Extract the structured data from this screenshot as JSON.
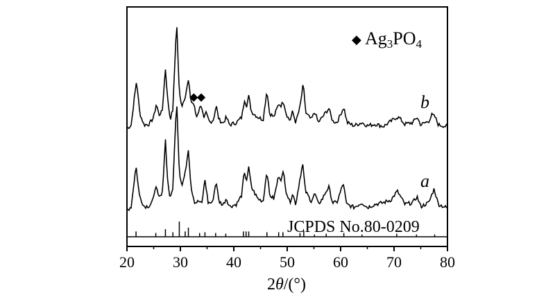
{
  "chart_data": {
    "type": "line",
    "title": "",
    "xlabel": "2θ/(°)",
    "xlabel_parts": {
      "prefix": "2",
      "theta": "θ",
      "suffix": "/(°)"
    },
    "ylabel": "",
    "xlim": [
      20,
      80
    ],
    "x_ticks": [
      20,
      30,
      40,
      50,
      60,
      70,
      80
    ],
    "y_axis": "no ticks or tick labels; traces offset vertically (arbitrary intensity)",
    "legend": {
      "marker": "◆",
      "label_parts": [
        "Ag",
        "3",
        "PO",
        "4"
      ],
      "label": "Ag3PO4",
      "placement": "top-right"
    },
    "reference_label": "JCPDS No.80-0209",
    "reference_lines": [
      {
        "x": 21.7,
        "h": 0.35
      },
      {
        "x": 25.4,
        "h": 0.25
      },
      {
        "x": 27.2,
        "h": 0.5
      },
      {
        "x": 28.6,
        "h": 0.3
      },
      {
        "x": 29.8,
        "h": 1.0
      },
      {
        "x": 30.9,
        "h": 0.35
      },
      {
        "x": 31.5,
        "h": 0.6
      },
      {
        "x": 33.6,
        "h": 0.25
      },
      {
        "x": 34.6,
        "h": 0.3
      },
      {
        "x": 36.6,
        "h": 0.25
      },
      {
        "x": 38.5,
        "h": 0.2
      },
      {
        "x": 41.8,
        "h": 0.35
      },
      {
        "x": 42.3,
        "h": 0.35
      },
      {
        "x": 42.8,
        "h": 0.35
      },
      {
        "x": 46.2,
        "h": 0.3
      },
      {
        "x": 48.4,
        "h": 0.3
      },
      {
        "x": 49.2,
        "h": 0.3
      },
      {
        "x": 52.4,
        "h": 0.25
      },
      {
        "x": 53.1,
        "h": 0.4
      },
      {
        "x": 55.1,
        "h": 0.15
      },
      {
        "x": 57.3,
        "h": 0.2
      },
      {
        "x": 60.6,
        "h": 0.25
      },
      {
        "x": 64.0,
        "h": 0.15
      },
      {
        "x": 70.5,
        "h": 0.2
      },
      {
        "x": 74.2,
        "h": 0.15
      },
      {
        "x": 77.6,
        "h": 0.15
      }
    ],
    "series": [
      {
        "name": "b",
        "diamond_markers_x": [
          32.5,
          33.9
        ],
        "points": [
          [
            20,
            0
          ],
          [
            20.8,
            0.05
          ],
          [
            21.3,
            0.35
          ],
          [
            21.8,
            0.62
          ],
          [
            22.4,
            0.2
          ],
          [
            23.2,
            0.05
          ],
          [
            24.2,
            0.06
          ],
          [
            25.0,
            0.15
          ],
          [
            25.5,
            0.32
          ],
          [
            26.0,
            0.18
          ],
          [
            26.6,
            0.22
          ],
          [
            27.2,
            0.78
          ],
          [
            27.6,
            0.4
          ],
          [
            28.1,
            0.12
          ],
          [
            28.6,
            0.25
          ],
          [
            29.3,
            1.4
          ],
          [
            29.8,
            0.45
          ],
          [
            30.3,
            0.3
          ],
          [
            30.9,
            0.42
          ],
          [
            31.5,
            0.62
          ],
          [
            32.0,
            0.35
          ],
          [
            32.5,
            0.32
          ],
          [
            33.0,
            0.15
          ],
          [
            33.9,
            0.32
          ],
          [
            34.4,
            0.12
          ],
          [
            34.8,
            0.2
          ],
          [
            35.5,
            0.08
          ],
          [
            36.2,
            0.12
          ],
          [
            36.7,
            0.3
          ],
          [
            37.2,
            0.12
          ],
          [
            38.0,
            0.07
          ],
          [
            38.6,
            0.15
          ],
          [
            39.2,
            0.05
          ],
          [
            40.5,
            0.08
          ],
          [
            41.5,
            0.15
          ],
          [
            42.0,
            0.38
          ],
          [
            42.4,
            0.3
          ],
          [
            42.8,
            0.42
          ],
          [
            43.3,
            0.22
          ],
          [
            44.5,
            0.15
          ],
          [
            45.5,
            0.12
          ],
          [
            46.2,
            0.5
          ],
          [
            46.7,
            0.2
          ],
          [
            47.5,
            0.15
          ],
          [
            48.4,
            0.32
          ],
          [
            48.9,
            0.3
          ],
          [
            49.3,
            0.36
          ],
          [
            49.8,
            0.2
          ],
          [
            50.5,
            0.1
          ],
          [
            51.0,
            0.22
          ],
          [
            51.6,
            0.08
          ],
          [
            52.4,
            0.28
          ],
          [
            53.0,
            0.58
          ],
          [
            53.5,
            0.2
          ],
          [
            54.5,
            0.12
          ],
          [
            55.2,
            0.22
          ],
          [
            55.8,
            0.08
          ],
          [
            56.6,
            0.15
          ],
          [
            57.3,
            0.22
          ],
          [
            57.8,
            0.26
          ],
          [
            58.5,
            0.1
          ],
          [
            59.3,
            0.08
          ],
          [
            60.6,
            0.28
          ],
          [
            61.2,
            0.08
          ],
          [
            62.5,
            0.04
          ],
          [
            64.0,
            0.08
          ],
          [
            65.0,
            0.04
          ],
          [
            66.5,
            0.06
          ],
          [
            68.0,
            0.03
          ],
          [
            69.5,
            0.1
          ],
          [
            70.5,
            0.15
          ],
          [
            71.0,
            0.14
          ],
          [
            72.0,
            0.06
          ],
          [
            73.5,
            0.08
          ],
          [
            74.3,
            0.15
          ],
          [
            75.0,
            0.05
          ],
          [
            76.5,
            0.1
          ],
          [
            77.1,
            0.18
          ],
          [
            77.7,
            0.15
          ],
          [
            78.3,
            0.05
          ],
          [
            80,
            0.03
          ]
        ]
      },
      {
        "name": "a",
        "points": [
          [
            20,
            0
          ],
          [
            20.8,
            0.05
          ],
          [
            21.3,
            0.35
          ],
          [
            21.7,
            0.58
          ],
          [
            22.3,
            0.2
          ],
          [
            23.2,
            0.05
          ],
          [
            24.2,
            0.06
          ],
          [
            25.0,
            0.15
          ],
          [
            25.4,
            0.35
          ],
          [
            25.9,
            0.16
          ],
          [
            26.6,
            0.2
          ],
          [
            27.2,
            0.92
          ],
          [
            27.6,
            0.4
          ],
          [
            28.1,
            0.14
          ],
          [
            28.6,
            0.3
          ],
          [
            29.3,
            1.45
          ],
          [
            29.8,
            0.5
          ],
          [
            30.3,
            0.32
          ],
          [
            30.9,
            0.48
          ],
          [
            31.5,
            0.8
          ],
          [
            32.0,
            0.3
          ],
          [
            32.7,
            0.1
          ],
          [
            33.5,
            0.12
          ],
          [
            34.0,
            0.08
          ],
          [
            34.6,
            0.4
          ],
          [
            35.2,
            0.1
          ],
          [
            36.0,
            0.1
          ],
          [
            36.7,
            0.38
          ],
          [
            37.2,
            0.12
          ],
          [
            38.0,
            0.07
          ],
          [
            38.6,
            0.16
          ],
          [
            39.2,
            0.05
          ],
          [
            40.5,
            0.08
          ],
          [
            41.5,
            0.2
          ],
          [
            41.9,
            0.48
          ],
          [
            42.4,
            0.4
          ],
          [
            42.8,
            0.55
          ],
          [
            43.3,
            0.3
          ],
          [
            44.5,
            0.15
          ],
          [
            45.5,
            0.12
          ],
          [
            46.2,
            0.52
          ],
          [
            46.7,
            0.2
          ],
          [
            47.5,
            0.15
          ],
          [
            48.4,
            0.45
          ],
          [
            48.9,
            0.4
          ],
          [
            49.3,
            0.5
          ],
          [
            49.8,
            0.25
          ],
          [
            50.5,
            0.1
          ],
          [
            51.0,
            0.22
          ],
          [
            51.6,
            0.08
          ],
          [
            52.4,
            0.42
          ],
          [
            52.9,
            0.6
          ],
          [
            53.4,
            0.25
          ],
          [
            54.5,
            0.12
          ],
          [
            55.2,
            0.22
          ],
          [
            55.8,
            0.08
          ],
          [
            56.6,
            0.15
          ],
          [
            57.3,
            0.25
          ],
          [
            57.8,
            0.3
          ],
          [
            58.5,
            0.1
          ],
          [
            59.3,
            0.1
          ],
          [
            60.5,
            0.35
          ],
          [
            61.1,
            0.08
          ],
          [
            62.5,
            0.04
          ],
          [
            64.0,
            0.1
          ],
          [
            65.0,
            0.04
          ],
          [
            66.5,
            0.08
          ],
          [
            68.0,
            0.1
          ],
          [
            69.5,
            0.14
          ],
          [
            70.6,
            0.25
          ],
          [
            71.2,
            0.18
          ],
          [
            72.0,
            0.08
          ],
          [
            73.5,
            0.1
          ],
          [
            74.3,
            0.18
          ],
          [
            75.0,
            0.05
          ],
          [
            76.5,
            0.1
          ],
          [
            77.5,
            0.28
          ],
          [
            78.3,
            0.08
          ],
          [
            80,
            0.03
          ]
        ]
      }
    ]
  }
}
